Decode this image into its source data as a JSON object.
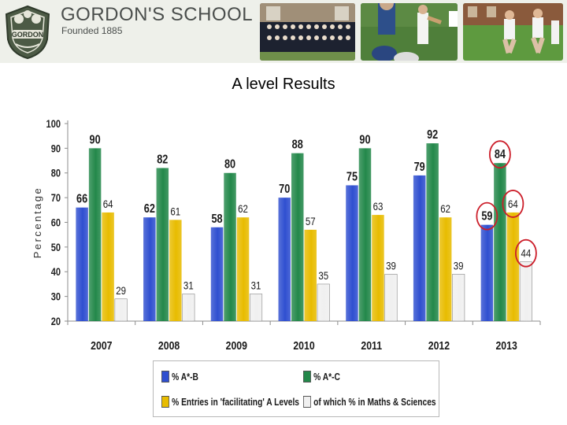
{
  "header": {
    "school_name": "GORDON'S SCHOOL",
    "founded": "Founded 1885",
    "crest_text": "GORDON"
  },
  "slide": {
    "title": "A level Results"
  },
  "colors": {
    "banner": "#eef0ea",
    "series": [
      "#2f4fd0",
      "#23884a",
      "#e8bc00",
      "#f0f0f0"
    ],
    "highlight": "#cc1e2a"
  },
  "chart_data": {
    "type": "bar",
    "title": "",
    "xlabel": "",
    "ylabel": "Percentage",
    "ylim": [
      20,
      100
    ],
    "yticks": [
      20,
      30,
      40,
      50,
      60,
      70,
      80,
      90,
      100
    ],
    "grid": false,
    "legend_position": "bottom",
    "categories": [
      "2007",
      "2008",
      "2009",
      "2010",
      "2011",
      "2012",
      "2013"
    ],
    "series": [
      {
        "name": "% A*-B",
        "values": [
          66,
          62,
          58,
          70,
          75,
          79,
          59
        ]
      },
      {
        "name": "% A*-C",
        "values": [
          90,
          82,
          80,
          88,
          90,
          92,
          84
        ]
      },
      {
        "name": "% Entries in 'facilitating' A Levels",
        "values": [
          64,
          61,
          62,
          57,
          63,
          62,
          64
        ]
      },
      {
        "name": "of which % in Maths & Sciences",
        "values": [
          29,
          31,
          31,
          35,
          39,
          39,
          44
        ]
      }
    ],
    "annotations": [
      {
        "text": "59",
        "category": "2013",
        "series": "% A*-B",
        "style": "red circle"
      },
      {
        "text": "84",
        "category": "2013",
        "series": "% A*-C",
        "style": "red circle"
      },
      {
        "text": "64",
        "category": "2013",
        "series": "% Entries in 'facilitating' A Levels",
        "style": "red circle"
      },
      {
        "text": "44",
        "category": "2013",
        "series": "of which % in Maths & Sciences",
        "style": "red circle"
      }
    ]
  }
}
